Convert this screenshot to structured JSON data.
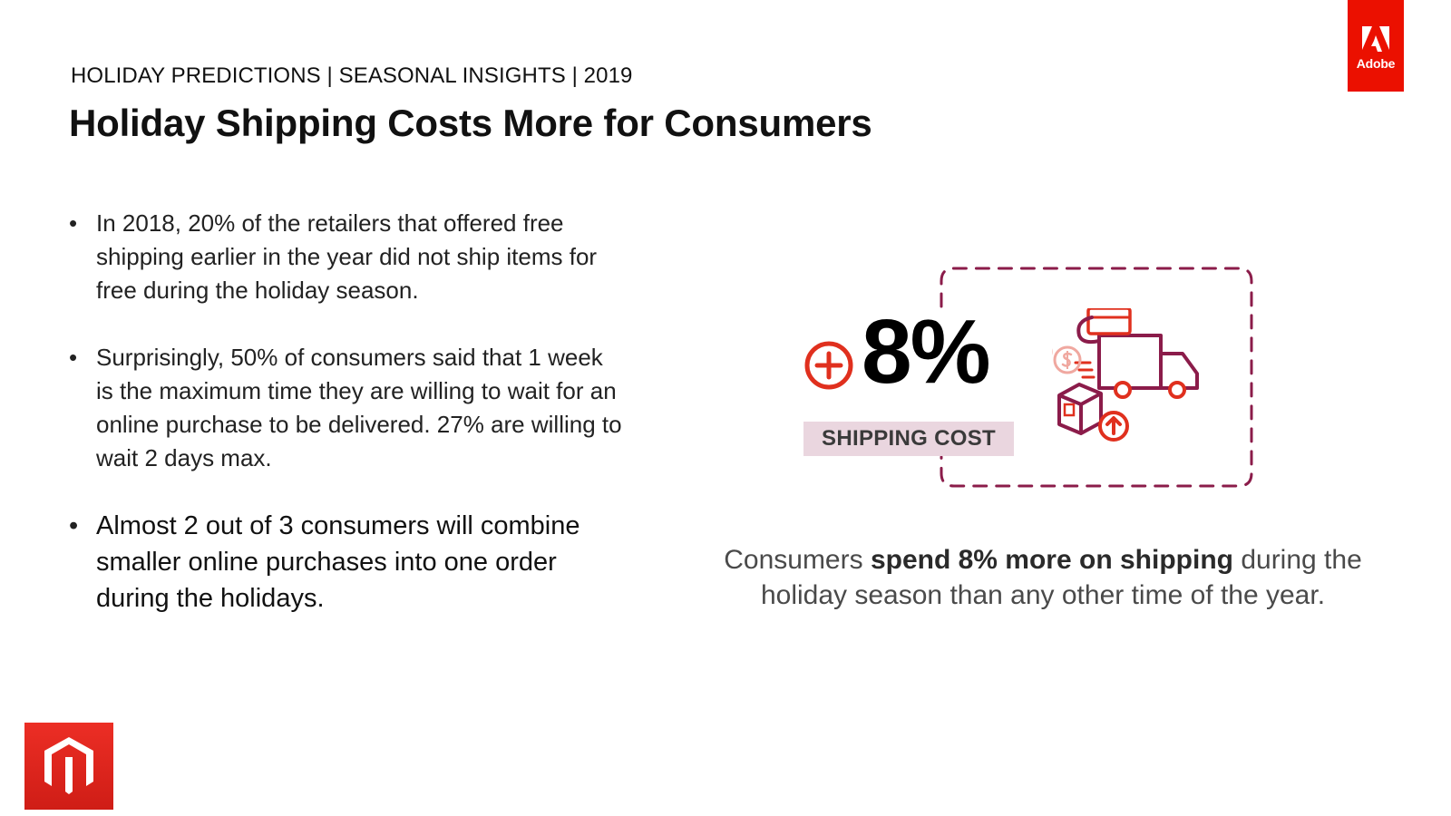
{
  "header": {
    "kicker": "HOLIDAY PREDICTIONS | SEASONAL INSIGHTS | 2019",
    "title": "Holiday Shipping Costs More for Consumers"
  },
  "brand": {
    "adobe_logo": "adobe-logo",
    "adobe_label": "Adobe",
    "adobe_color": "#eb1000",
    "magento_logo": "magento-logo",
    "magento_color": "#e2231a"
  },
  "bullets": [
    "In 2018, 20% of the retailers that offered free shipping earlier in the year did not ship items for free during the holiday season.",
    "Surprisingly, 50% of consumers said that 1 week is the maximum time they are willing to wait for an online purchase to be delivered. 27% are willing to wait 2 days max.",
    "Almost 2 out of 3 consumers will combine smaller online purchases into one order during the holidays."
  ],
  "stat": {
    "icon": "plus-circle-icon",
    "value": "8%",
    "label": "SHIPPING COST",
    "illustration": [
      "delivery-truck-icon",
      "credit-card-icon",
      "dollar-coin-icon",
      "package-box-icon",
      "arrow-up-circle-icon"
    ],
    "accent_color": "#e0301e",
    "outline_color": "#8b1c4a"
  },
  "caption": {
    "prefix": "Consumers ",
    "emphasis": "spend 8% more on shipping",
    "suffix": " during the holiday season than any other time of the year."
  }
}
